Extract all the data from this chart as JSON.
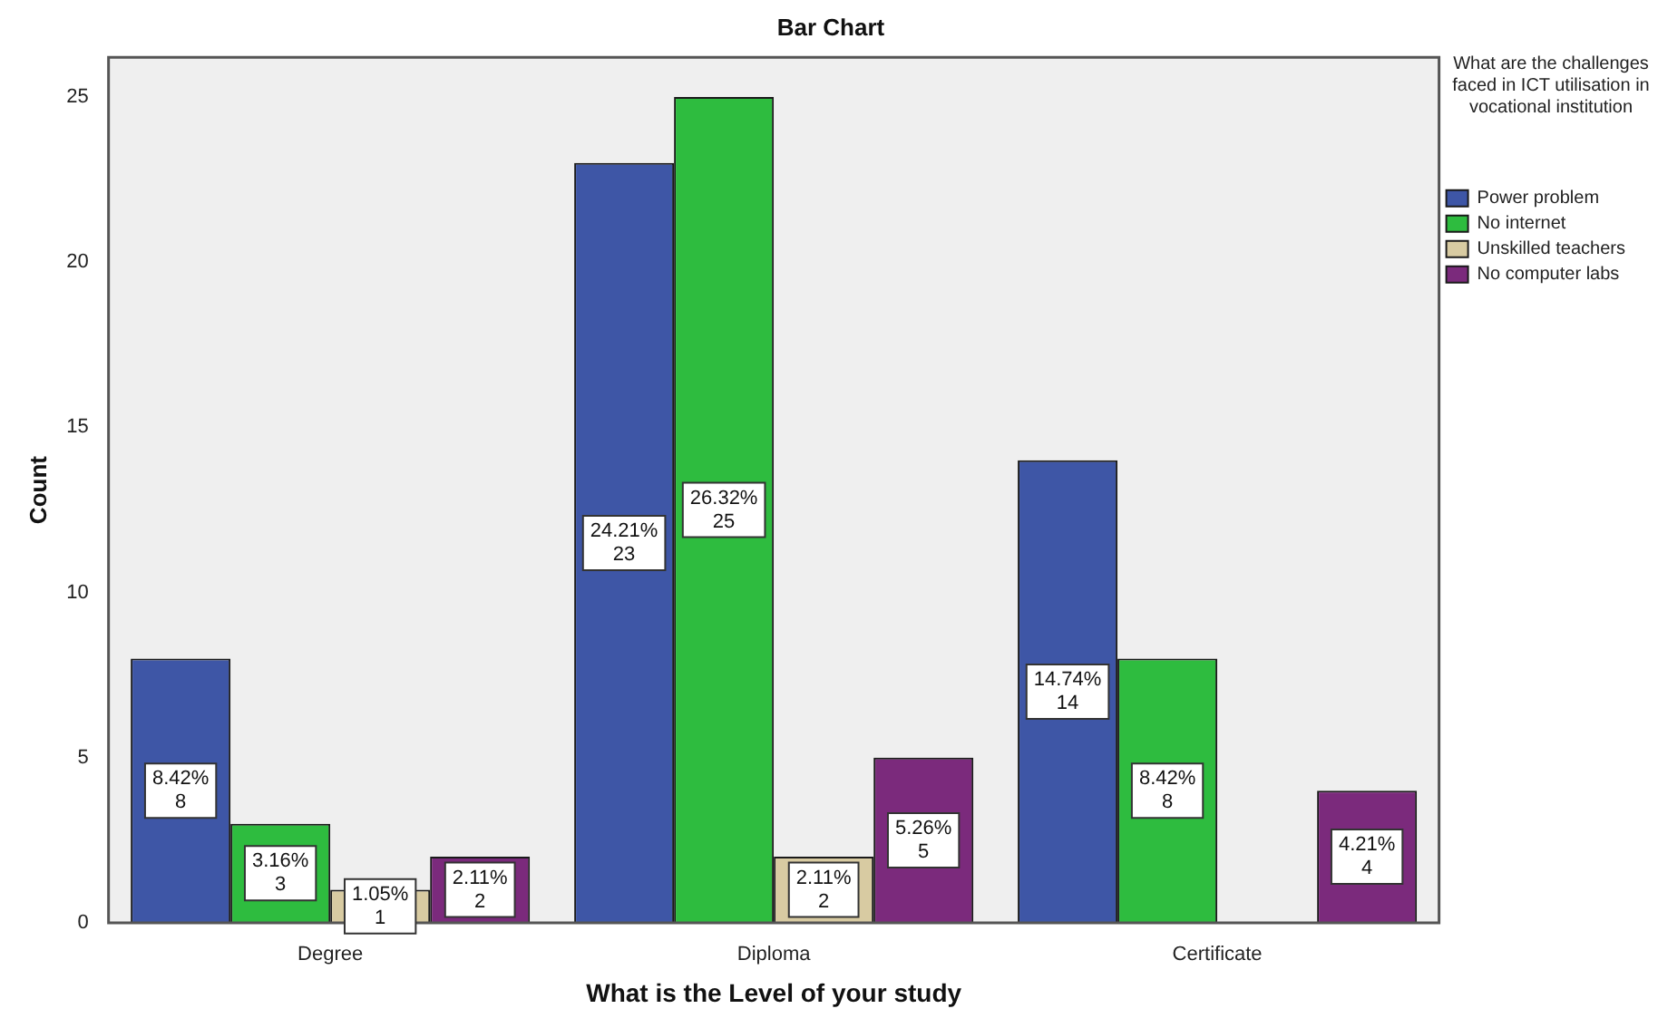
{
  "chart_data": {
    "type": "bar",
    "title": "Bar Chart",
    "xlabel": "What is the Level of your study",
    "ylabel": "Count",
    "legend_title": "What are the challenges faced in ICT utilisation in vocational institution",
    "categories": [
      "Degree",
      "Diploma",
      "Certificate"
    ],
    "series": [
      {
        "name": "Power problem",
        "color": "#3e56a6",
        "values": [
          8,
          23,
          14
        ],
        "value_labels": [
          "8.42%\n8",
          "24.21%\n23",
          "14.74%\n14"
        ]
      },
      {
        "name": "No internet",
        "color": "#2ebc3f",
        "values": [
          3,
          25,
          8
        ],
        "value_labels": [
          "3.16%\n3",
          "26.32%\n25",
          "8.42%\n8"
        ]
      },
      {
        "name": "Unskilled teachers",
        "color": "#d8cba2",
        "values": [
          1,
          2,
          0
        ],
        "value_labels": [
          "1.05%\n1",
          "2.11%\n2",
          null
        ]
      },
      {
        "name": "No computer labs",
        "color": "#7b2a7c",
        "values": [
          2,
          5,
          4
        ],
        "value_labels": [
          "2.11%\n2",
          "5.26%\n5",
          "4.21%\n4"
        ]
      }
    ],
    "ylim": [
      0,
      26.2
    ],
    "yticks": [
      0,
      5,
      10,
      15,
      20,
      25
    ],
    "grid": false,
    "legend": "right"
  }
}
